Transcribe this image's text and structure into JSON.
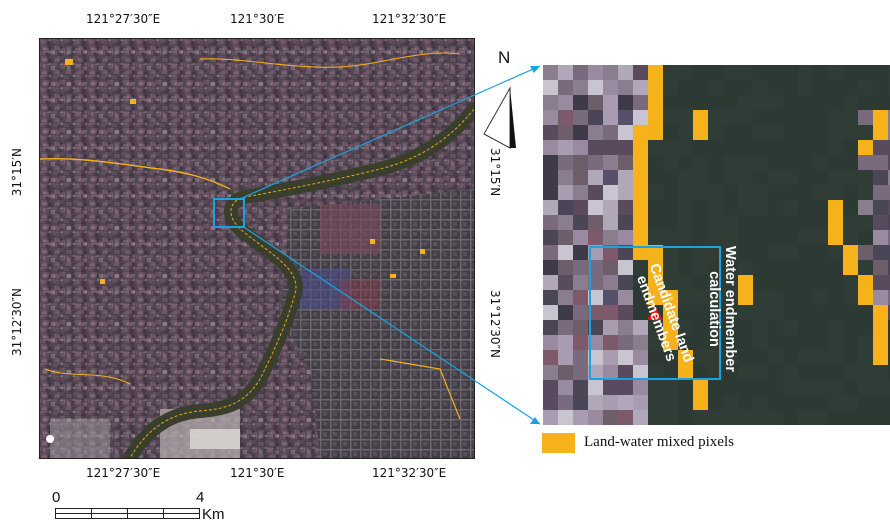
{
  "top_axis_labels": [
    "121°27′30″E",
    "121°30′E",
    "121°32′30″E"
  ],
  "bottom_axis_labels": [
    "121°27′30″E",
    "121°30′E",
    "121°32′30″E"
  ],
  "left_axis_labels": [
    "31°15′N",
    "31°12′30″N"
  ],
  "right_axis_labels": [
    "31°15′N",
    "31°12′30″N"
  ],
  "north_label": "N",
  "scale_bar": {
    "start": "0",
    "end": "4",
    "unit": "Km"
  },
  "zoom_panel": {
    "annotation_water": "Water endmember calculation",
    "annotation_land": "Candidate land endmembers"
  },
  "legend": {
    "label": "Land-water mixed pixels",
    "color": "#f6b21a"
  },
  "colors": {
    "water": "#2f3d36",
    "river": "#343a2a",
    "highlight_box": "#1aa3e0",
    "marker": "#e81010"
  },
  "icons": [
    "north-arrow-icon",
    "red-triangle-marker-icon"
  ]
}
